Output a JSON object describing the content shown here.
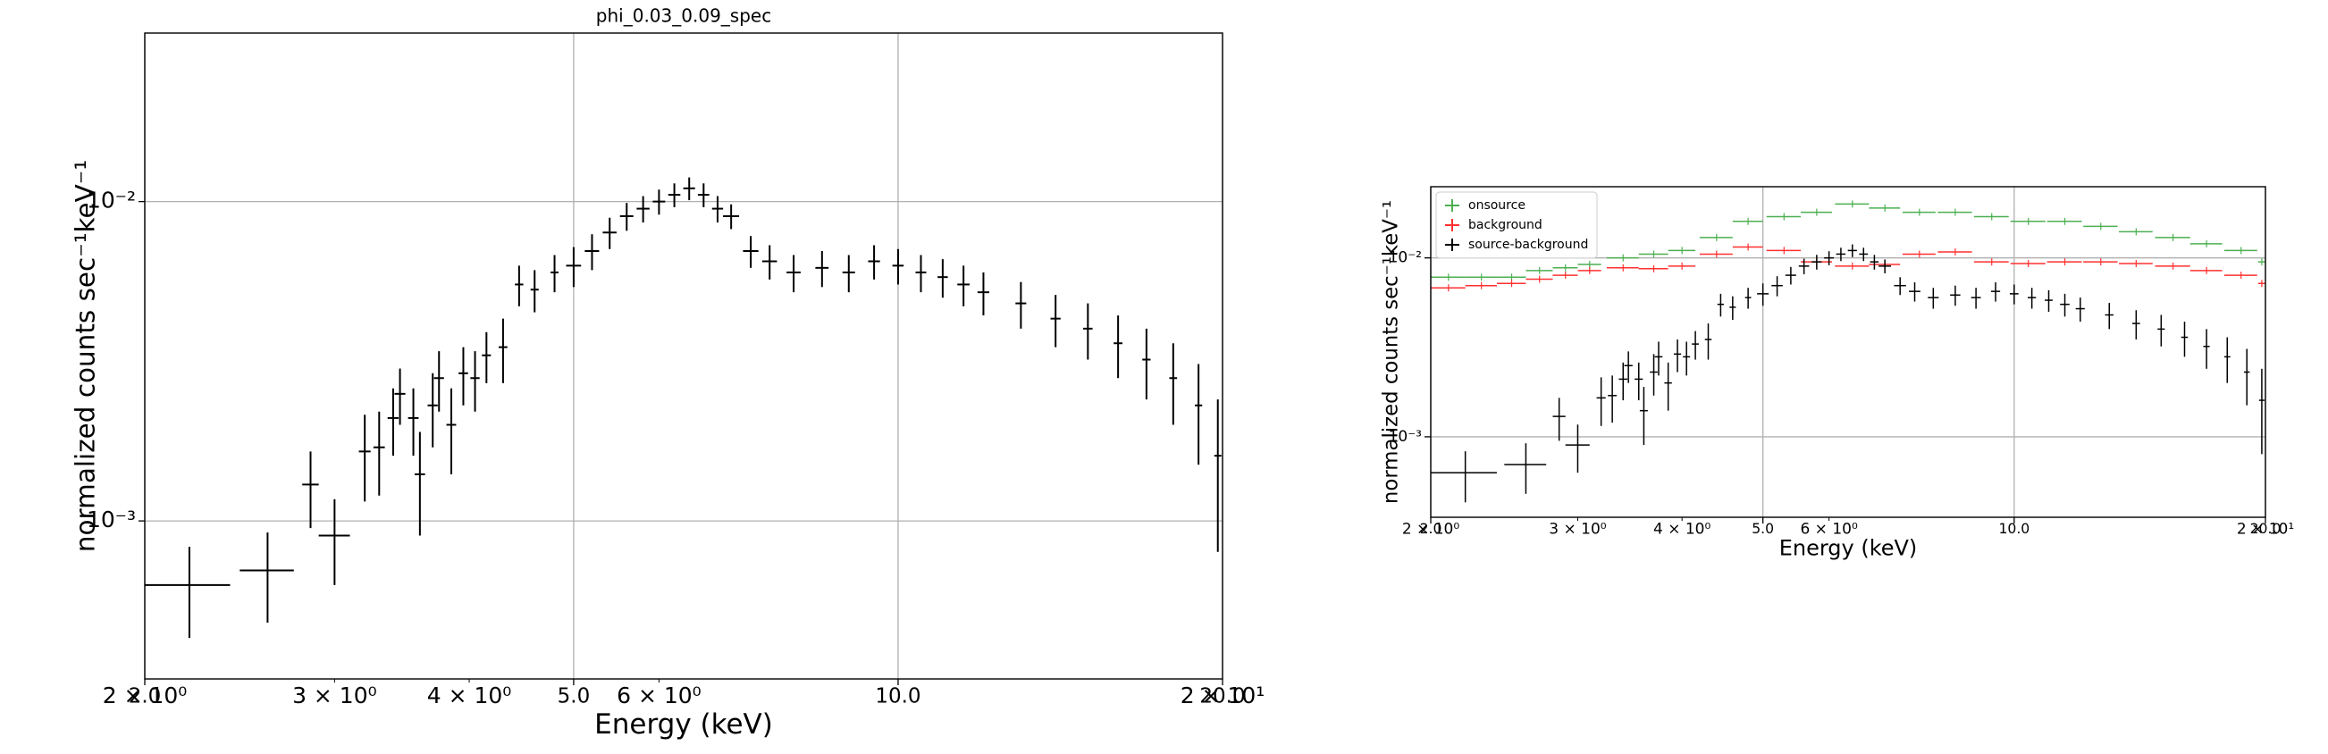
{
  "chart_data": [
    {
      "type": "errorbar",
      "title": "phi_0.03_0.09_spec",
      "xlabel": "Energy (keV)",
      "ylabel": "normalized counts sec⁻¹keV⁻¹",
      "xscale": "log",
      "yscale": "log",
      "xlim": [
        2.0,
        20.0
      ],
      "ylim": [
        0.00032,
        0.0337
      ],
      "grid": true,
      "xticks": [
        {
          "value": 2.0,
          "label": "2.0"
        },
        {
          "value": 5.0,
          "label": "5.0"
        },
        {
          "value": 10.0,
          "label": "10.0"
        },
        {
          "value": 20.0,
          "label": "20.0"
        }
      ],
      "xminorticks": [
        {
          "value": 2,
          "label": "2 × 10⁰"
        },
        {
          "value": 3,
          "label": "3 × 10⁰"
        },
        {
          "value": 4,
          "label": "4 × 10⁰"
        },
        {
          "value": 6,
          "label": "6 × 10⁰"
        },
        {
          "value": 20,
          "label": "2 × 10¹"
        }
      ],
      "yticks": [
        {
          "value": 0.01,
          "label": "10⁻²"
        },
        {
          "value": 0.001,
          "label": "10⁻³"
        }
      ],
      "series": [
        {
          "color": "#000000",
          "x": [
            2.2,
            2.6,
            2.85,
            3.0,
            3.2,
            3.3,
            3.4,
            3.45,
            3.55,
            3.6,
            3.7,
            3.75,
            3.85,
            3.95,
            4.05,
            4.15,
            4.3,
            4.45,
            4.6,
            4.8,
            5.0,
            5.2,
            5.4,
            5.6,
            5.8,
            6.0,
            6.2,
            6.4,
            6.6,
            6.8,
            7.0,
            7.3,
            7.6,
            8.0,
            8.5,
            9.0,
            9.5,
            10,
            10.5,
            11,
            11.5,
            12,
            13,
            14,
            15,
            16,
            17,
            18,
            19,
            19.8
          ],
          "values": [
            0.00063,
            0.0007,
            0.0013,
            0.0009,
            0.00165,
            0.0017,
            0.0021,
            0.0025,
            0.0021,
            0.0014,
            0.0023,
            0.0028,
            0.002,
            0.0029,
            0.0028,
            0.0033,
            0.0035,
            0.0055,
            0.0053,
            0.006,
            0.0063,
            0.007,
            0.008,
            0.009,
            0.0095,
            0.01,
            0.0105,
            0.011,
            0.0105,
            0.0095,
            0.009,
            0.007,
            0.0065,
            0.006,
            0.0062,
            0.006,
            0.0065,
            0.0063,
            0.006,
            0.0058,
            0.0055,
            0.0052,
            0.0048,
            0.0043,
            0.004,
            0.0036,
            0.0032,
            0.0028,
            0.0023,
            0.0016
          ],
          "xerr": [
            0.2,
            0.15,
            0.05,
            0.1,
            0.04,
            0.04,
            0.04,
            0.04,
            0.04,
            0.04,
            0.04,
            0.04,
            0.04,
            0.04,
            0.04,
            0.04,
            0.04,
            0.04,
            0.04,
            0.04,
            0.08,
            0.08,
            0.08,
            0.08,
            0.08,
            0.08,
            0.08,
            0.08,
            0.08,
            0.08,
            0.12,
            0.12,
            0.12,
            0.12,
            0.12,
            0.12,
            0.12,
            0.12,
            0.12,
            0.12,
            0.15,
            0.15,
            0.15,
            0.15,
            0.15,
            0.15,
            0.15,
            0.15,
            0.15,
            0.15
          ],
          "yerr": [
            0.0002,
            0.00022,
            0.00035,
            0.00027,
            0.0005,
            0.0005,
            0.0005,
            0.0005,
            0.0005,
            0.0005,
            0.0006,
            0.0006,
            0.0006,
            0.0006,
            0.0006,
            0.0006,
            0.0008,
            0.0008,
            0.0008,
            0.0008,
            0.0009,
            0.0009,
            0.0009,
            0.0009,
            0.0009,
            0.0009,
            0.0009,
            0.0009,
            0.0009,
            0.0009,
            0.0008,
            0.0008,
            0.0008,
            0.0008,
            0.0008,
            0.0008,
            0.0008,
            0.0008,
            0.0008,
            0.0008,
            0.0008,
            0.0008,
            0.0008,
            0.0008,
            0.0008,
            0.0008,
            0.0008,
            0.0008,
            0.0008,
            0.0008
          ]
        }
      ]
    },
    {
      "type": "errorbar",
      "xlabel": "Energy (keV)",
      "ylabel": "normalized counts sec⁻¹keV⁻¹",
      "xscale": "log",
      "yscale": "log",
      "xlim": [
        2.0,
        20.0
      ],
      "ylim": [
        0.000355,
        0.025
      ],
      "grid": true,
      "legend": "upper left",
      "xticks": [
        {
          "value": 2.0,
          "label": "2.0"
        },
        {
          "value": 5.0,
          "label": "5.0"
        },
        {
          "value": 10.0,
          "label": "10.0"
        },
        {
          "value": 20.0,
          "label": "20.0"
        }
      ],
      "xminorticks": [
        {
          "value": 2,
          "label": "2 × 10⁰"
        },
        {
          "value": 3,
          "label": "3 × 10⁰"
        },
        {
          "value": 4,
          "label": "4 × 10⁰"
        },
        {
          "value": 6,
          "label": "6 × 10⁰"
        },
        {
          "value": 20,
          "label": "2 × 10¹"
        }
      ],
      "yticks": [
        {
          "value": 0.01,
          "label": "10⁻²"
        },
        {
          "value": 0.001,
          "label": "10⁻³"
        }
      ],
      "series": [
        {
          "name": "onsource",
          "color": "#4caf50",
          "x": [
            2.1,
            2.3,
            2.5,
            2.7,
            2.9,
            3.1,
            3.4,
            3.7,
            4.0,
            4.4,
            4.8,
            5.3,
            5.8,
            6.4,
            7.0,
            7.7,
            8.5,
            9.4,
            10.4,
            11.5,
            12.7,
            14,
            15.5,
            17,
            18.7,
            19.8
          ],
          "values": [
            0.0078,
            0.0078,
            0.0078,
            0.0085,
            0.0088,
            0.0092,
            0.01,
            0.0105,
            0.011,
            0.013,
            0.016,
            0.017,
            0.018,
            0.02,
            0.019,
            0.018,
            0.018,
            0.017,
            0.016,
            0.016,
            0.015,
            0.014,
            0.013,
            0.012,
            0.011,
            0.0095
          ],
          "xerr": [
            0.1,
            0.1,
            0.1,
            0.1,
            0.1,
            0.1,
            0.15,
            0.15,
            0.15,
            0.2,
            0.2,
            0.25,
            0.25,
            0.3,
            0.3,
            0.35,
            0.4,
            0.45,
            0.5,
            0.55,
            0.6,
            0.65,
            0.75,
            0.75,
            0.85,
            0.2
          ]
        },
        {
          "name": "background",
          "color": "#ff3030",
          "x": [
            2.1,
            2.3,
            2.5,
            2.7,
            2.9,
            3.1,
            3.4,
            3.7,
            4.0,
            4.4,
            4.8,
            5.3,
            5.8,
            6.4,
            7.0,
            7.7,
            8.5,
            9.4,
            10.4,
            11.5,
            12.7,
            14,
            15.5,
            17,
            18.7,
            19.8
          ],
          "values": [
            0.0068,
            0.007,
            0.0072,
            0.0076,
            0.008,
            0.0085,
            0.0088,
            0.0087,
            0.009,
            0.0105,
            0.0115,
            0.011,
            0.0095,
            0.009,
            0.0092,
            0.0105,
            0.0108,
            0.0095,
            0.0093,
            0.0095,
            0.0095,
            0.0093,
            0.009,
            0.0085,
            0.008,
            0.0072
          ],
          "xerr": [
            0.1,
            0.1,
            0.1,
            0.1,
            0.1,
            0.1,
            0.15,
            0.15,
            0.15,
            0.2,
            0.2,
            0.25,
            0.25,
            0.3,
            0.3,
            0.35,
            0.4,
            0.45,
            0.5,
            0.55,
            0.6,
            0.65,
            0.75,
            0.75,
            0.85,
            0.2
          ]
        },
        {
          "name": "source-background",
          "color": "#000000",
          "x": [
            2.2,
            2.6,
            2.85,
            3.0,
            3.2,
            3.3,
            3.4,
            3.45,
            3.55,
            3.6,
            3.7,
            3.75,
            3.85,
            3.95,
            4.05,
            4.15,
            4.3,
            4.45,
            4.6,
            4.8,
            5.0,
            5.2,
            5.4,
            5.6,
            5.8,
            6.0,
            6.2,
            6.4,
            6.6,
            6.8,
            7.0,
            7.3,
            7.6,
            8.0,
            8.5,
            9.0,
            9.5,
            10,
            10.5,
            11,
            11.5,
            12,
            13,
            14,
            15,
            16,
            17,
            18,
            19,
            19.8
          ],
          "values": [
            0.00063,
            0.0007,
            0.0013,
            0.0009,
            0.00165,
            0.0017,
            0.0021,
            0.0025,
            0.0021,
            0.0014,
            0.0023,
            0.0028,
            0.002,
            0.0029,
            0.0028,
            0.0033,
            0.0035,
            0.0055,
            0.0053,
            0.006,
            0.0063,
            0.007,
            0.008,
            0.009,
            0.0095,
            0.01,
            0.0105,
            0.011,
            0.0105,
            0.0095,
            0.009,
            0.007,
            0.0065,
            0.006,
            0.0062,
            0.006,
            0.0065,
            0.0063,
            0.006,
            0.0058,
            0.0055,
            0.0052,
            0.0048,
            0.0043,
            0.004,
            0.0036,
            0.0032,
            0.0028,
            0.0023,
            0.0016
          ],
          "xerr": [
            0.2,
            0.15,
            0.05,
            0.1,
            0.04,
            0.04,
            0.04,
            0.04,
            0.04,
            0.04,
            0.04,
            0.04,
            0.04,
            0.04,
            0.04,
            0.04,
            0.04,
            0.04,
            0.04,
            0.04,
            0.08,
            0.08,
            0.08,
            0.08,
            0.08,
            0.08,
            0.08,
            0.08,
            0.08,
            0.08,
            0.12,
            0.12,
            0.12,
            0.12,
            0.12,
            0.12,
            0.12,
            0.12,
            0.12,
            0.12,
            0.15,
            0.15,
            0.15,
            0.15,
            0.15,
            0.15,
            0.15,
            0.15,
            0.15,
            0.15
          ],
          "yerr": [
            0.0002,
            0.00022,
            0.00035,
            0.00027,
            0.0005,
            0.0005,
            0.0005,
            0.0005,
            0.0005,
            0.0005,
            0.0006,
            0.0006,
            0.0006,
            0.0006,
            0.0006,
            0.0006,
            0.0008,
            0.0008,
            0.0008,
            0.0008,
            0.0009,
            0.0009,
            0.0009,
            0.0009,
            0.0009,
            0.0009,
            0.0009,
            0.0009,
            0.0009,
            0.0009,
            0.0008,
            0.0008,
            0.0008,
            0.0008,
            0.0008,
            0.0008,
            0.0008,
            0.0008,
            0.0008,
            0.0008,
            0.0008,
            0.0008,
            0.0008,
            0.0008,
            0.0008,
            0.0008,
            0.0008,
            0.0008,
            0.0008,
            0.0008
          ]
        }
      ]
    }
  ]
}
